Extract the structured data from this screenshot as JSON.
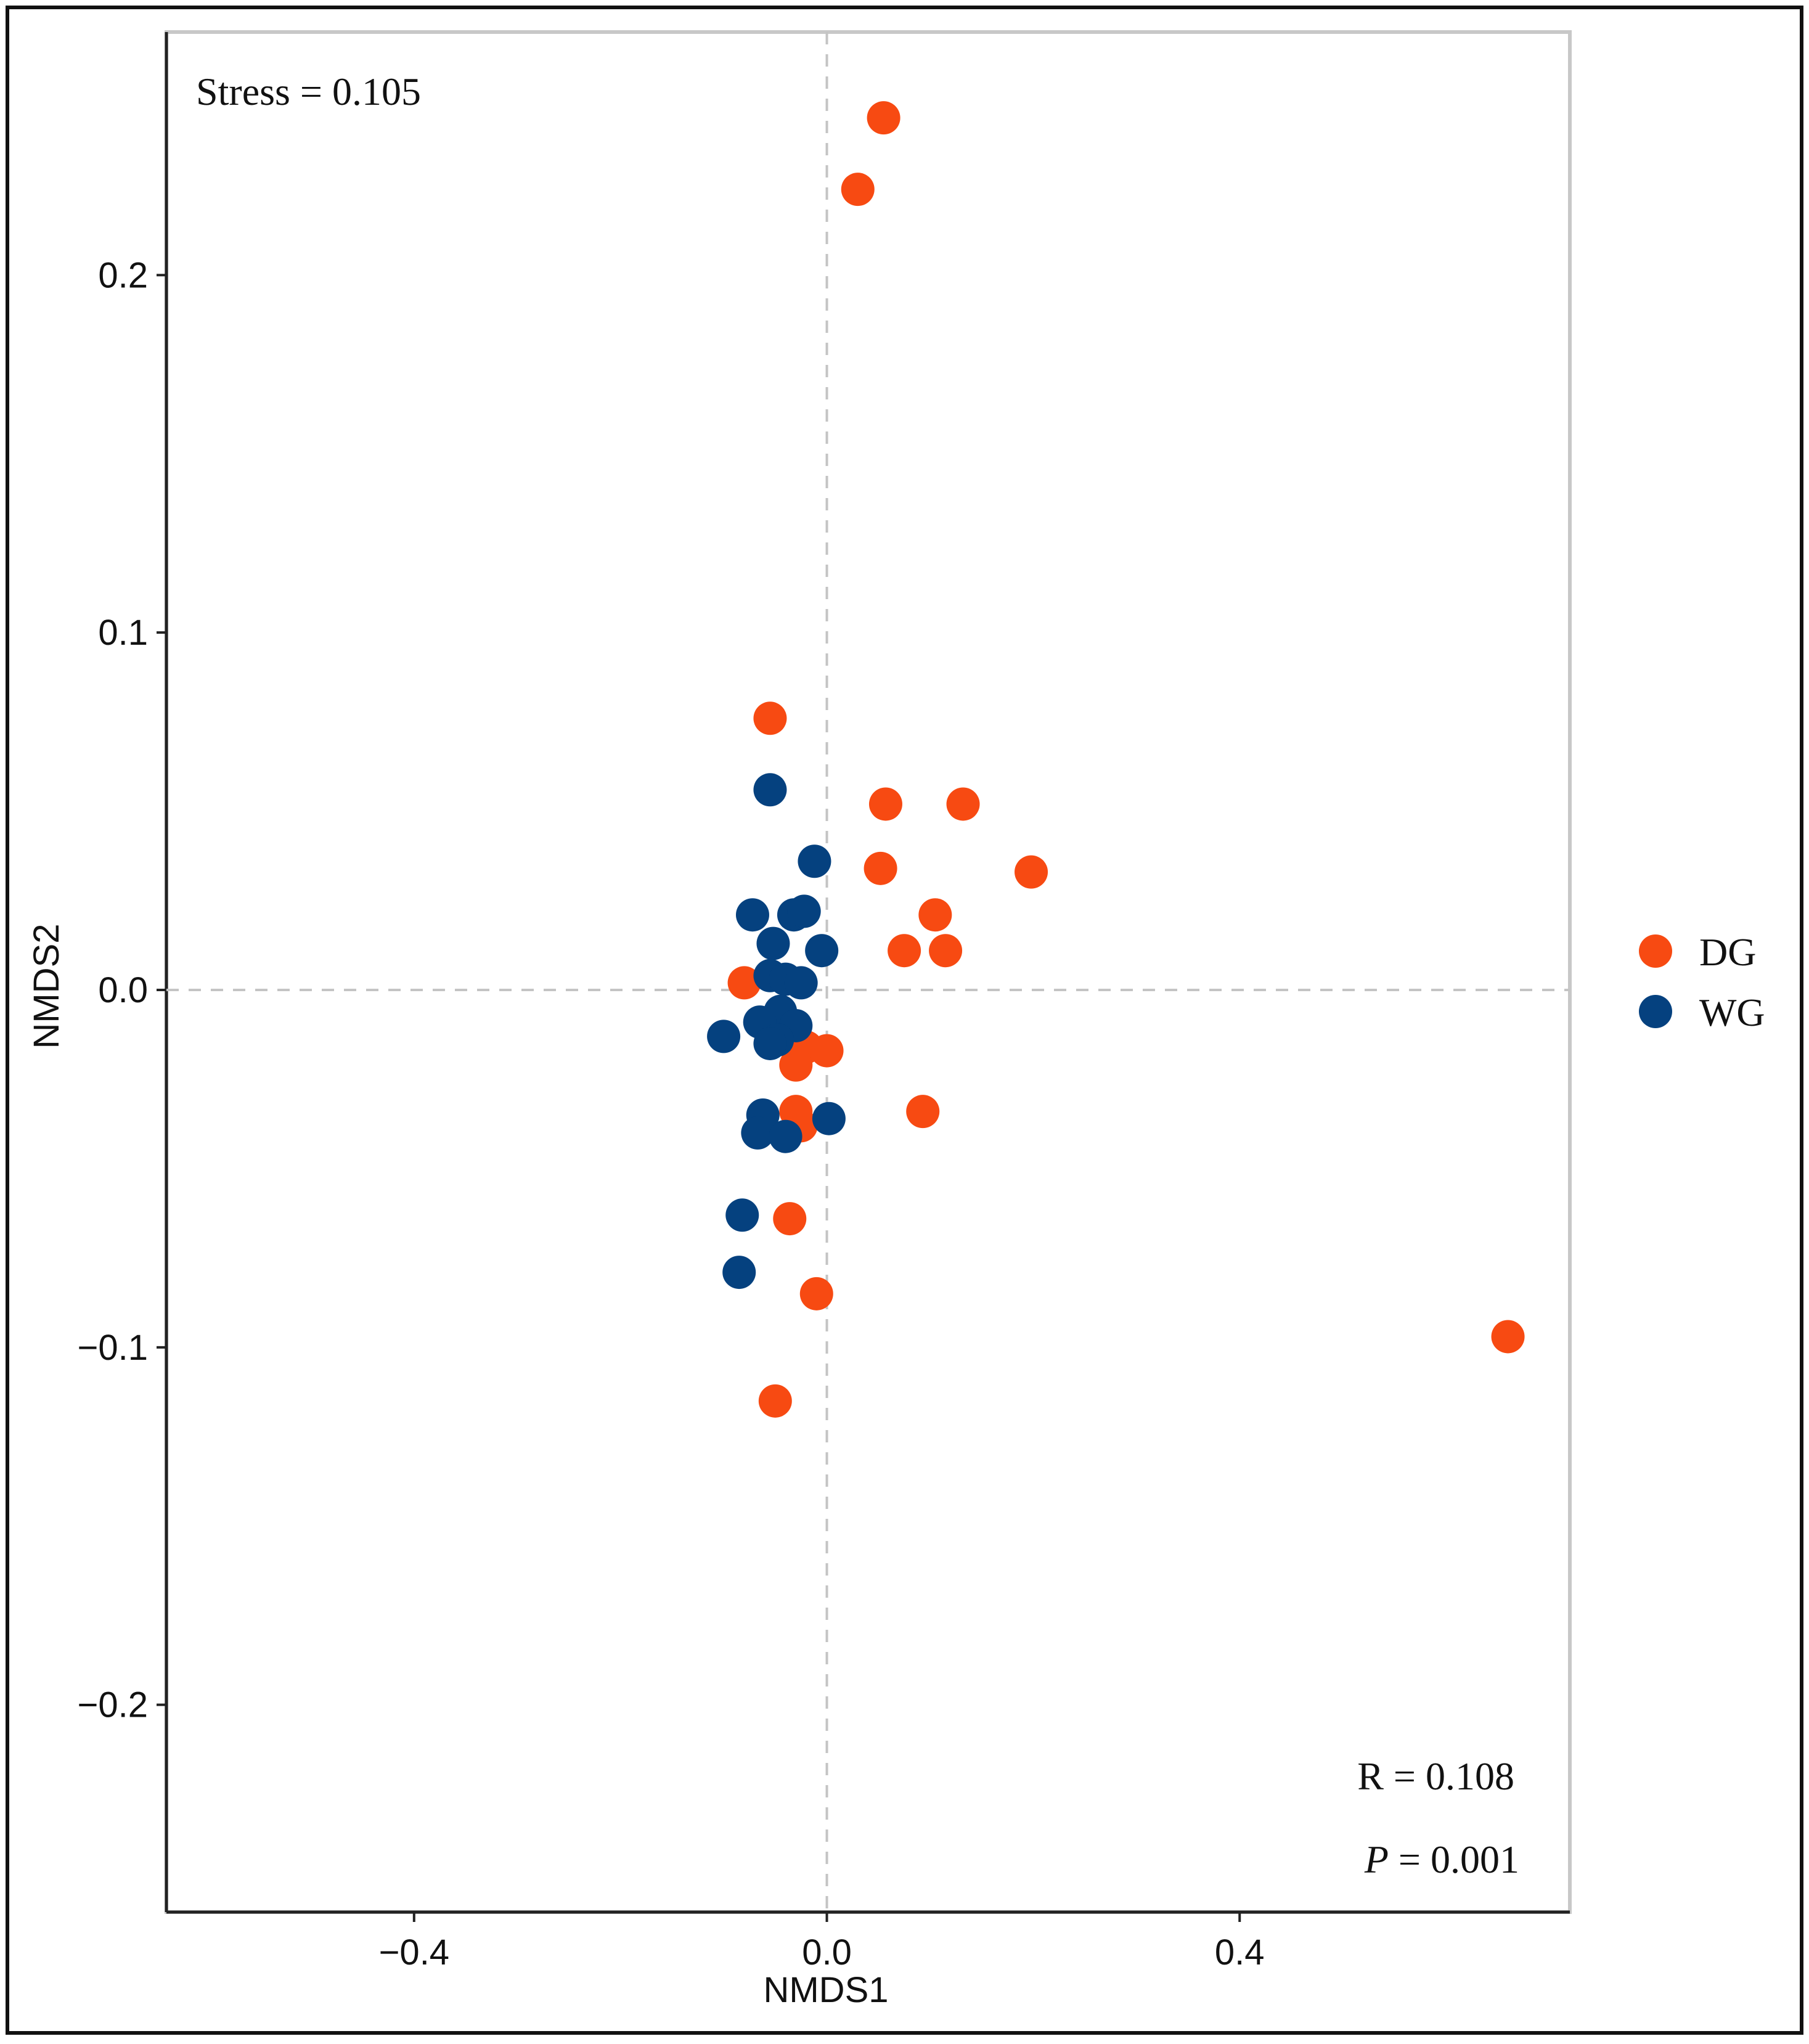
{
  "chart_data": {
    "type": "scatter",
    "title": "",
    "xlabel": "NMDS1",
    "ylabel": "NMDS2",
    "xlim": [
      -0.64,
      0.72
    ],
    "ylim": [
      -0.258,
      0.268
    ],
    "x_ticks": [
      -0.4,
      0.0,
      0.4
    ],
    "x_tick_labels": [
      "−0.4",
      "0.0",
      "0.4"
    ],
    "y_ticks": [
      0.2,
      0.1,
      0.0,
      -0.1,
      -0.2
    ],
    "y_tick_labels": [
      "0.2",
      "0.1",
      "0.0",
      "−0.1",
      "−0.2"
    ],
    "reference_lines": {
      "x": 0.0,
      "y": 0.0,
      "style": "dashed"
    },
    "grid": false,
    "annotations": {
      "stress": "Stress = 0.105",
      "r_value": "R = 0.108",
      "p_label": "P",
      "p_rest": " = 0.001"
    },
    "legend": {
      "position": "right",
      "entries": [
        {
          "name": "DG",
          "color": "#f74a12"
        },
        {
          "name": "WG",
          "color": "#05417f"
        }
      ]
    },
    "series": [
      {
        "name": "DG",
        "color": "#f74a12",
        "points": [
          {
            "x": 0.055,
            "y": 0.244
          },
          {
            "x": 0.03,
            "y": 0.224
          },
          {
            "x": -0.055,
            "y": 0.076
          },
          {
            "x": 0.057,
            "y": 0.052
          },
          {
            "x": 0.132,
            "y": 0.052
          },
          {
            "x": 0.052,
            "y": 0.034
          },
          {
            "x": 0.198,
            "y": 0.033
          },
          {
            "x": 0.105,
            "y": 0.021
          },
          {
            "x": 0.075,
            "y": 0.011
          },
          {
            "x": 0.115,
            "y": 0.011
          },
          {
            "x": -0.08,
            "y": 0.002
          },
          {
            "x": -0.02,
            "y": -0.016
          },
          {
            "x": 0.0,
            "y": -0.017
          },
          {
            "x": -0.03,
            "y": -0.021
          },
          {
            "x": -0.03,
            "y": -0.034
          },
          {
            "x": -0.025,
            "y": -0.038
          },
          {
            "x": 0.093,
            "y": -0.034
          },
          {
            "x": -0.036,
            "y": -0.064
          },
          {
            "x": -0.01,
            "y": -0.085
          },
          {
            "x": -0.05,
            "y": -0.115
          },
          {
            "x": 0.66,
            "y": -0.097
          }
        ]
      },
      {
        "name": "WG",
        "color": "#05417f",
        "points": [
          {
            "x": -0.055,
            "y": 0.056
          },
          {
            "x": -0.012,
            "y": 0.036
          },
          {
            "x": -0.072,
            "y": 0.021
          },
          {
            "x": -0.032,
            "y": 0.021
          },
          {
            "x": -0.022,
            "y": 0.022
          },
          {
            "x": -0.052,
            "y": 0.013
          },
          {
            "x": -0.005,
            "y": 0.011
          },
          {
            "x": -0.055,
            "y": 0.004
          },
          {
            "x": -0.04,
            "y": 0.003
          },
          {
            "x": -0.025,
            "y": 0.002
          },
          {
            "x": -0.045,
            "y": -0.006
          },
          {
            "x": -0.065,
            "y": -0.009
          },
          {
            "x": -0.03,
            "y": -0.01
          },
          {
            "x": -0.048,
            "y": -0.014
          },
          {
            "x": -0.1,
            "y": -0.013
          },
          {
            "x": -0.055,
            "y": -0.015
          },
          {
            "x": -0.062,
            "y": -0.035
          },
          {
            "x": 0.002,
            "y": -0.036
          },
          {
            "x": -0.067,
            "y": -0.04
          },
          {
            "x": -0.04,
            "y": -0.041
          },
          {
            "x": -0.082,
            "y": -0.063
          },
          {
            "x": -0.085,
            "y": -0.079
          }
        ]
      }
    ]
  }
}
